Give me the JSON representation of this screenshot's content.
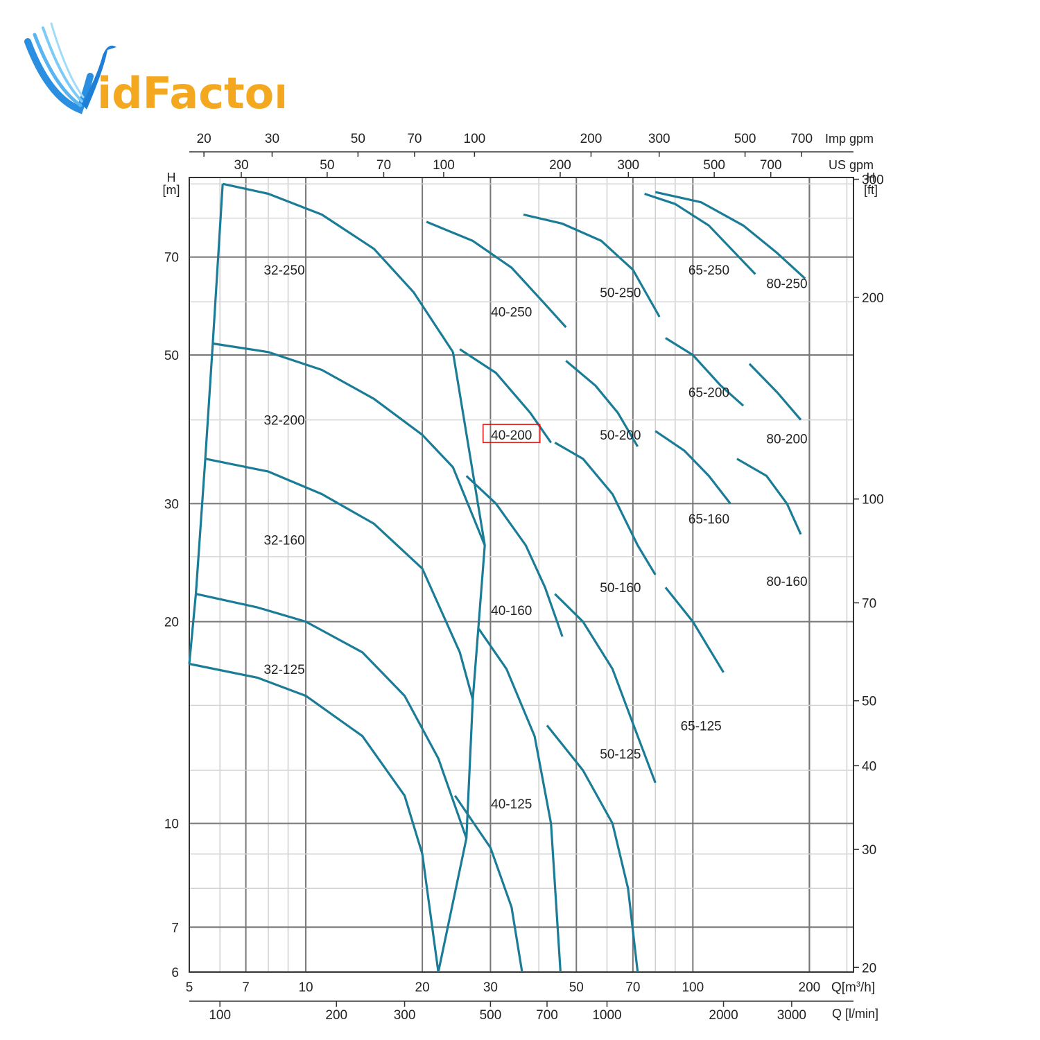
{
  "logo": {
    "text": "idFactor",
    "color_primary": "#1f7fd6",
    "color_accent": "#f3a81f"
  },
  "chart_data": {
    "type": "line",
    "title": "",
    "xlabel": "Q[m3/h]",
    "ylabel": "H [m]",
    "x_scale": "log",
    "y_scale": "log",
    "xlim": [
      5,
      260
    ],
    "ylim": [
      6,
      92
    ],
    "curve_color": "#1a7c96",
    "x_ticks": [
      5,
      7,
      10,
      20,
      30,
      50,
      70,
      100,
      200
    ],
    "y_ticks": [
      6,
      7,
      10,
      20,
      30,
      50,
      70
    ],
    "x_axis_label_parts": [
      "Q[m",
      "3",
      "/h]"
    ],
    "secondary_axes": {
      "lpm": {
        "label": "Q [l/min]",
        "ticks": [
          100,
          200,
          300,
          500,
          700,
          1000,
          2000,
          3000
        ]
      },
      "us_gpm": {
        "label": "US gpm",
        "ticks": [
          30,
          50,
          70,
          100,
          200,
          300,
          500,
          700
        ]
      },
      "imp_gpm": {
        "label": "Imp gpm",
        "ticks": [
          20,
          30,
          50,
          70,
          100,
          200,
          300,
          500,
          700
        ]
      },
      "ft": {
        "label_top": "H",
        "label_bottom": "[ft]",
        "ticks": [
          20,
          30,
          40,
          50,
          70,
          100,
          200,
          300
        ]
      },
      "m_label_top": "H",
      "m_label_bottom": "[m]"
    },
    "series": [
      {
        "name": "32-250",
        "label_at": [
          8.8,
          67
        ],
        "points": [
          [
            6.1,
            90
          ],
          [
            8,
            87
          ],
          [
            11,
            81
          ],
          [
            15,
            72
          ],
          [
            19,
            62
          ],
          [
            24,
            50.5
          ]
        ]
      },
      {
        "name": "32-200",
        "label_at": [
          8.8,
          40
        ],
        "points": [
          [
            5.75,
            52
          ],
          [
            8,
            50.5
          ],
          [
            11,
            47.5
          ],
          [
            15,
            43
          ],
          [
            20,
            38
          ],
          [
            24,
            34
          ],
          [
            29,
            26
          ]
        ]
      },
      {
        "name": "32-160",
        "label_at": [
          8.8,
          26.5
        ],
        "points": [
          [
            5.5,
            35
          ],
          [
            8,
            33.5
          ],
          [
            11,
            31
          ],
          [
            15,
            28
          ],
          [
            20,
            24
          ],
          [
            25,
            18
          ],
          [
            27,
            15.3
          ]
        ]
      },
      {
        "name": "32-125",
        "label_at": [
          8.8,
          17
        ],
        "points": [
          [
            5.2,
            22
          ],
          [
            7.5,
            21
          ],
          [
            10,
            20
          ],
          [
            14,
            18
          ],
          [
            18,
            15.5
          ],
          [
            22,
            12.5
          ],
          [
            26,
            9.5
          ]
        ]
      },
      {
        "name": "32-125-lower",
        "label_at": null,
        "points": [
          [
            5,
            17.3
          ],
          [
            7.5,
            16.5
          ],
          [
            10,
            15.5
          ],
          [
            14,
            13.5
          ],
          [
            18,
            11
          ],
          [
            20,
            9
          ],
          [
            22,
            6
          ]
        ]
      },
      {
        "name": "40-250",
        "label_at": [
          34,
          58
        ],
        "points": [
          [
            20.5,
            79
          ],
          [
            27,
            74
          ],
          [
            34,
            67.5
          ],
          [
            41,
            60
          ],
          [
            47,
            55
          ]
        ]
      },
      {
        "name": "40-200",
        "label_at": [
          34,
          38
        ],
        "highlighted": true,
        "points": [
          [
            25,
            51
          ],
          [
            31,
            47
          ],
          [
            38,
            41
          ],
          [
            43,
            37
          ]
        ]
      },
      {
        "name": "40-160",
        "label_at": [
          34,
          20.8
        ],
        "points": [
          [
            26,
            33
          ],
          [
            31,
            30
          ],
          [
            37,
            26
          ],
          [
            41.5,
            22.5
          ],
          [
            46,
            19
          ]
        ]
      },
      {
        "name": "40-160-lower",
        "label_at": null,
        "points": [
          [
            28,
            19.5
          ],
          [
            33,
            17
          ],
          [
            39,
            13.5
          ],
          [
            43,
            10
          ],
          [
            45.5,
            6
          ]
        ]
      },
      {
        "name": "40-125",
        "label_at": [
          34,
          10.7
        ],
        "points": [
          [
            24.3,
            11
          ],
          [
            30,
            9.2
          ],
          [
            34,
            7.5
          ],
          [
            36.2,
            6
          ]
        ]
      },
      {
        "name": "50-250",
        "label_at": [
          65,
          62
        ],
        "points": [
          [
            36.5,
            81
          ],
          [
            46,
            78.5
          ],
          [
            58,
            74
          ],
          [
            70,
            67
          ],
          [
            82,
            57
          ]
        ]
      },
      {
        "name": "50-200",
        "label_at": [
          65,
          38
        ],
        "points": [
          [
            47,
            49
          ],
          [
            56,
            45
          ],
          [
            64,
            41
          ],
          [
            72,
            36.5
          ]
        ]
      },
      {
        "name": "50-160",
        "label_at": [
          65,
          22.5
        ],
        "points": [
          [
            44,
            37
          ],
          [
            52,
            35
          ],
          [
            62,
            31
          ],
          [
            72,
            26
          ],
          [
            80,
            23.5
          ]
        ]
      },
      {
        "name": "50-160-lower",
        "label_at": null,
        "points": [
          [
            44,
            22
          ],
          [
            52,
            20
          ],
          [
            62,
            17
          ],
          [
            72,
            13.5
          ],
          [
            80,
            11.5
          ]
        ]
      },
      {
        "name": "50-125",
        "label_at": [
          65,
          12.7
        ],
        "points": [
          [
            42,
            14
          ],
          [
            52,
            12
          ],
          [
            62,
            10
          ],
          [
            68,
            8
          ],
          [
            72,
            6
          ]
        ]
      },
      {
        "name": "65-250",
        "label_at": [
          110,
          67
        ],
        "points": [
          [
            75,
            87
          ],
          [
            90,
            84
          ],
          [
            110,
            78
          ],
          [
            130,
            70.5
          ],
          [
            145,
            66
          ]
        ]
      },
      {
        "name": "65-200",
        "label_at": [
          110,
          44
        ],
        "points": [
          [
            85,
            53
          ],
          [
            100,
            50
          ],
          [
            118,
            45
          ],
          [
            135,
            42
          ]
        ]
      },
      {
        "name": "65-160",
        "label_at": [
          110,
          28.5
        ],
        "points": [
          [
            80,
            38.5
          ],
          [
            95,
            36
          ],
          [
            110,
            33
          ],
          [
            125,
            30
          ]
        ]
      },
      {
        "name": "65-125",
        "label_at": [
          105,
          14
        ],
        "points": [
          [
            85,
            22.5
          ],
          [
            100,
            20
          ],
          [
            115,
            17.5
          ],
          [
            120,
            16.8
          ]
        ]
      },
      {
        "name": "80-250",
        "label_at": [
          175,
          64
        ],
        "points": [
          [
            80,
            87.5
          ],
          [
            105,
            84.5
          ],
          [
            135,
            78
          ],
          [
            165,
            71
          ],
          [
            195,
            65
          ]
        ]
      },
      {
        "name": "80-200",
        "label_at": [
          175,
          37.5
        ],
        "points": [
          [
            140,
            48.5
          ],
          [
            165,
            44
          ],
          [
            190,
            40
          ]
        ]
      },
      {
        "name": "80-160",
        "label_at": [
          175,
          23
        ],
        "points": [
          [
            130,
            35
          ],
          [
            155,
            33
          ],
          [
            175,
            30
          ],
          [
            190,
            27
          ]
        ]
      }
    ]
  }
}
